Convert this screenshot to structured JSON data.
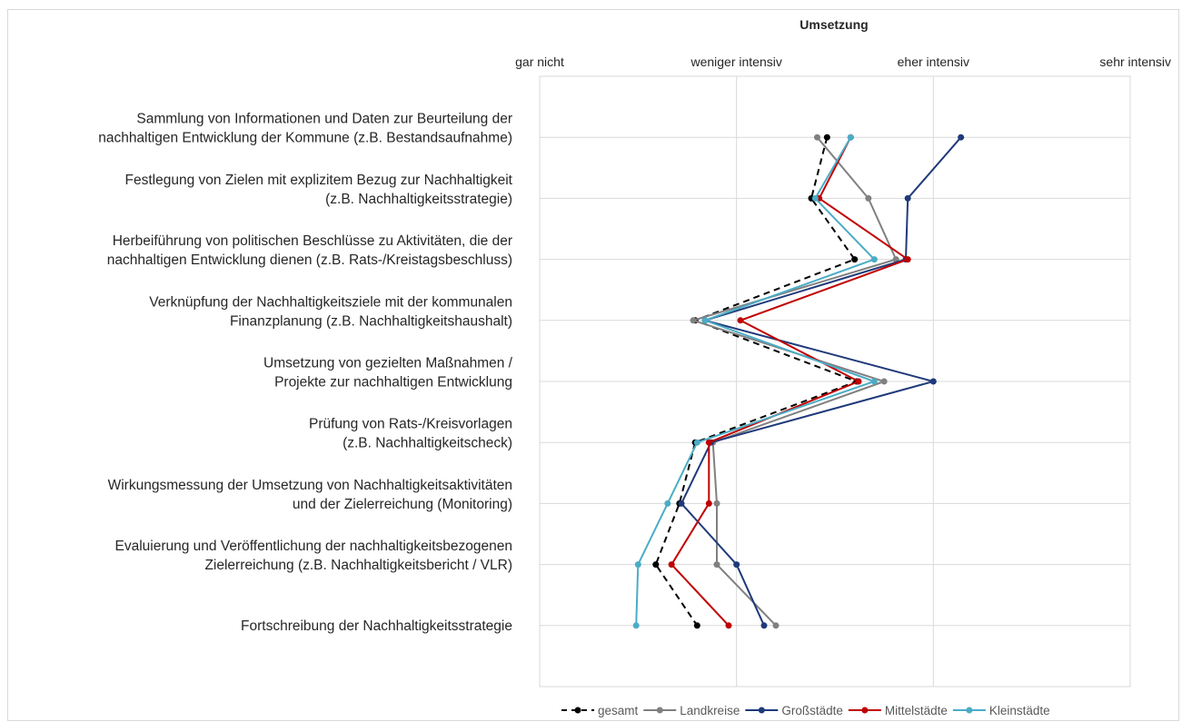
{
  "chart_data": {
    "type": "line",
    "title": "Umsetzung",
    "x_ticks": [
      "gar nicht",
      "weniger intensiv",
      "eher intensiv",
      "sehr intensiv"
    ],
    "xlim": [
      1,
      4
    ],
    "categories": [
      [
        "Sammlung von Informationen und Daten zur Beurteilung der",
        "nachhaltigen Entwicklung der Kommune (z.B. Bestandsaufnahme)"
      ],
      [
        "Festlegung von Zielen mit explizitem Bezug zur Nachhaltigkeit",
        "(z.B. Nachhaltigkeitsstrategie)"
      ],
      [
        "Herbeiführung von politischen Beschlüsse zu Aktivitäten, die der",
        "nachhaltigen Entwicklung dienen (z.B. Rats-/Kreistagsbeschluss)"
      ],
      [
        "Verknüpfung der Nachhaltigkeitsziele mit der kommunalen",
        "Finanzplanung (z.B. Nachhaltigkeitshaushalt)"
      ],
      [
        "Umsetzung von gezielten Maßnahmen /",
        "Projekte zur nachhaltigen Entwicklung"
      ],
      [
        "Prüfung von Rats-/Kreisvorlagen",
        "(z.B. Nachhaltigkeitscheck)"
      ],
      [
        "Wirkungsmessung der Umsetzung von Nachhaltigkeitsaktivitäten",
        "und der Zielerreichung (Monitoring)"
      ],
      [
        "Evaluierung und Veröffentlichung der nachhaltigkeitsbezogenen",
        "Zielerreichung  (z.B. Nachhaltigkeitsbericht / VLR)"
      ],
      [
        "Fortschreibung der Nachhaltigkeitsstrategie"
      ]
    ],
    "series": [
      {
        "name": "gesamt",
        "color": "#000000",
        "dash": true,
        "values": [
          2.46,
          2.38,
          2.6,
          1.79,
          2.61,
          1.79,
          1.71,
          1.59,
          1.8
        ]
      },
      {
        "name": "Landkreise",
        "color": "#808080",
        "dash": false,
        "values": [
          2.41,
          2.67,
          2.81,
          1.78,
          2.75,
          1.88,
          1.9,
          1.9,
          2.2
        ]
      },
      {
        "name": "Großstädte",
        "color": "#1f3a7a",
        "dash": false,
        "values": [
          3.14,
          2.87,
          2.86,
          1.84,
          3.0,
          1.87,
          1.72,
          2.0,
          2.14
        ]
      },
      {
        "name": "Mittelstädte",
        "color": "#c00000",
        "dash": false,
        "values": [
          2.58,
          2.42,
          2.87,
          2.02,
          2.62,
          1.86,
          1.86,
          1.67,
          1.96
        ]
      },
      {
        "name": "Kleinstädte",
        "color": "#4bacc6",
        "dash": false,
        "values": [
          2.58,
          2.4,
          2.7,
          1.84,
          2.7,
          1.8,
          1.65,
          1.5,
          1.49
        ]
      }
    ],
    "grid": true,
    "legend": "bottom"
  }
}
